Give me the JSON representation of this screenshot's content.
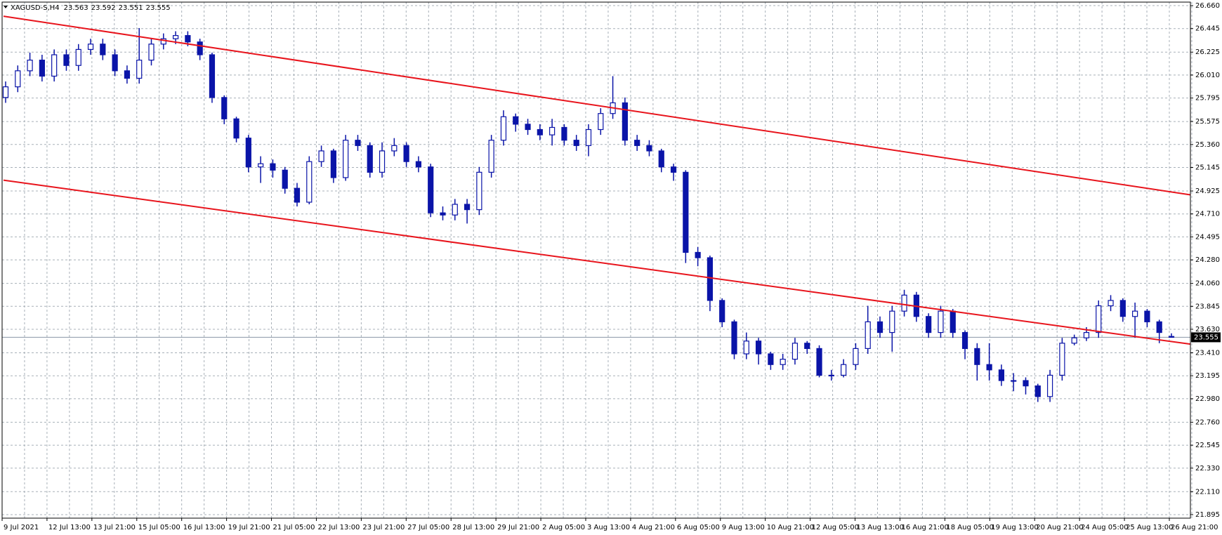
{
  "chart_data": {
    "type": "candlestick",
    "symbol": "XAGUSD-S,H4",
    "xtick_labels": [
      "9 Jul 2021",
      "12 Jul 13:00",
      "13 Jul 21:00",
      "15 Jul 05:00",
      "16 Jul 13:00",
      "19 Jul 21:00",
      "21 Jul 05:00",
      "22 Jul 13:00",
      "23 Jul 21:00",
      "27 Jul 05:00",
      "28 Jul 13:00",
      "29 Jul 21:00",
      "2 Aug 05:00",
      "3 Aug 13:00",
      "4 Aug 21:00",
      "6 Aug 05:00",
      "9 Aug 13:00",
      "10 Aug 21:00",
      "12 Aug 05:00",
      "13 Aug 13:00",
      "16 Aug 21:00",
      "18 Aug 05:00",
      "19 Aug 13:00",
      "20 Aug 21:00",
      "24 Aug 05:00",
      "25 Aug 13:00",
      "26 Aug 21:00"
    ],
    "open": [
      25.8,
      25.9,
      26.05,
      26.15,
      26.0,
      26.2,
      26.1,
      26.25,
      26.3,
      26.2,
      26.05,
      25.98,
      26.15,
      26.3,
      26.35,
      26.38,
      26.32,
      26.2,
      25.8,
      25.6,
      25.42,
      25.15,
      25.18,
      25.12,
      24.95,
      24.82,
      25.2,
      25.3,
      25.05,
      25.4,
      25.35,
      25.1,
      25.3,
      25.35,
      25.2,
      25.15,
      24.72,
      24.7,
      24.8,
      24.75,
      25.1,
      25.4,
      25.62,
      25.55,
      25.5,
      25.45,
      25.52,
      25.4,
      25.35,
      25.5,
      25.65,
      25.75,
      25.4,
      25.35,
      25.3,
      25.15,
      25.1,
      24.35,
      24.3,
      23.9,
      23.7,
      23.4,
      23.52,
      23.4,
      23.3,
      23.35,
      23.5,
      23.45,
      23.2,
      23.2,
      23.3,
      23.45,
      23.7,
      23.6,
      23.8,
      23.95,
      23.75,
      23.6,
      23.8,
      23.6,
      23.45,
      23.3,
      23.25,
      23.15,
      23.15,
      23.1,
      23.0,
      23.2,
      23.5,
      23.55,
      23.6,
      23.85,
      23.9,
      23.75,
      23.8,
      23.7,
      23.563
    ],
    "high": [
      25.95,
      26.1,
      26.22,
      26.2,
      26.25,
      26.25,
      26.3,
      26.35,
      26.35,
      26.25,
      26.1,
      26.45,
      26.35,
      26.4,
      26.42,
      26.42,
      26.35,
      26.22,
      25.82,
      25.62,
      25.45,
      25.25,
      25.22,
      25.15,
      25.0,
      25.25,
      25.35,
      25.32,
      25.45,
      25.45,
      25.38,
      25.38,
      25.42,
      25.38,
      25.25,
      25.18,
      24.78,
      24.85,
      24.85,
      25.15,
      25.45,
      25.68,
      25.65,
      25.6,
      25.55,
      25.6,
      25.55,
      25.45,
      25.55,
      25.7,
      26.0,
      25.8,
      25.45,
      25.4,
      25.32,
      25.18,
      25.12,
      24.4,
      24.32,
      23.92,
      23.72,
      23.6,
      23.55,
      23.42,
      23.4,
      23.55,
      23.52,
      23.48,
      23.25,
      23.35,
      23.5,
      23.85,
      23.75,
      23.85,
      24.0,
      23.98,
      23.78,
      23.85,
      23.82,
      23.62,
      23.5,
      23.5,
      23.3,
      23.22,
      23.18,
      23.12,
      23.25,
      23.55,
      23.58,
      23.65,
      23.9,
      23.95,
      23.92,
      23.88,
      23.82,
      23.72,
      23.592
    ],
    "low": [
      25.75,
      25.85,
      26.0,
      25.95,
      25.95,
      26.05,
      26.05,
      26.2,
      26.15,
      26.0,
      25.93,
      25.93,
      26.1,
      26.25,
      26.3,
      26.28,
      26.15,
      25.75,
      25.55,
      25.38,
      25.1,
      25.0,
      25.05,
      24.9,
      24.78,
      24.8,
      25.15,
      25.0,
      25.02,
      25.3,
      25.05,
      25.05,
      25.25,
      25.15,
      25.1,
      24.68,
      24.65,
      24.65,
      24.62,
      24.7,
      25.05,
      25.35,
      25.48,
      25.45,
      25.4,
      25.35,
      25.35,
      25.3,
      25.25,
      25.45,
      25.6,
      25.35,
      25.3,
      25.25,
      25.1,
      25.02,
      24.25,
      24.22,
      23.8,
      23.65,
      23.35,
      23.35,
      23.3,
      23.25,
      23.25,
      23.3,
      23.4,
      23.18,
      23.15,
      23.18,
      23.25,
      23.4,
      23.55,
      23.42,
      23.75,
      23.7,
      23.55,
      23.55,
      23.55,
      23.35,
      23.15,
      23.15,
      23.1,
      23.05,
      23.02,
      22.95,
      22.95,
      23.15,
      23.48,
      23.52,
      23.55,
      23.8,
      23.7,
      23.55,
      23.65,
      23.5,
      23.551
    ],
    "close": [
      25.9,
      26.05,
      26.15,
      26.0,
      26.2,
      26.1,
      26.25,
      26.3,
      26.2,
      26.05,
      25.98,
      26.15,
      26.3,
      26.35,
      26.38,
      26.32,
      26.2,
      25.8,
      25.6,
      25.42,
      25.15,
      25.18,
      25.12,
      24.95,
      24.82,
      25.2,
      25.3,
      25.05,
      25.4,
      25.35,
      25.1,
      25.3,
      25.35,
      25.2,
      25.15,
      24.72,
      24.7,
      24.8,
      24.75,
      25.1,
      25.4,
      25.62,
      25.55,
      25.5,
      25.45,
      25.52,
      25.4,
      25.35,
      25.5,
      25.65,
      25.75,
      25.4,
      25.35,
      25.3,
      25.15,
      25.1,
      24.35,
      24.3,
      23.9,
      23.7,
      23.4,
      23.52,
      23.4,
      23.3,
      23.35,
      23.5,
      23.45,
      23.2,
      23.2,
      23.3,
      23.45,
      23.7,
      23.6,
      23.8,
      23.95,
      23.75,
      23.6,
      23.8,
      23.6,
      23.45,
      23.3,
      23.25,
      23.15,
      23.15,
      23.1,
      23.0,
      23.2,
      23.5,
      23.55,
      23.6,
      23.85,
      23.9,
      23.75,
      23.8,
      23.7,
      23.6,
      23.555
    ],
    "color": "#0a14a8",
    "up_fill": "#ffffff",
    "ylim": [
      21.862,
      26.693
    ],
    "yticks": [
      {
        "value": 26.66,
        "label": "26.660"
      },
      26.445,
      26.225,
      {
        "value": 26.01,
        "label": "26.010"
      },
      25.795,
      25.575,
      {
        "value": 25.36,
        "label": "25.360"
      },
      25.145,
      24.925,
      {
        "value": 24.71,
        "label": "24.710"
      },
      24.495,
      {
        "value": 24.28,
        "label": "24.280"
      },
      {
        "value": 24.06,
        "label": "24.060"
      },
      23.845,
      {
        "value": 23.63,
        "label": "23.630"
      },
      {
        "value": 23.41,
        "label": "23.410"
      },
      23.195,
      {
        "value": 22.98,
        "label": "22.980"
      },
      {
        "value": 22.76,
        "label": "22.760"
      },
      22.545,
      {
        "value": 22.33,
        "label": "22.330"
      },
      {
        "value": 22.11,
        "label": "22.110"
      },
      21.895
    ],
    "grid": true,
    "trendlines": [
      {
        "start": 26.561,
        "end": 24.889,
        "color": "#e8141c"
      },
      {
        "start": 25.026,
        "end": 23.491,
        "color": "#e8141c"
      }
    ]
  }
}
